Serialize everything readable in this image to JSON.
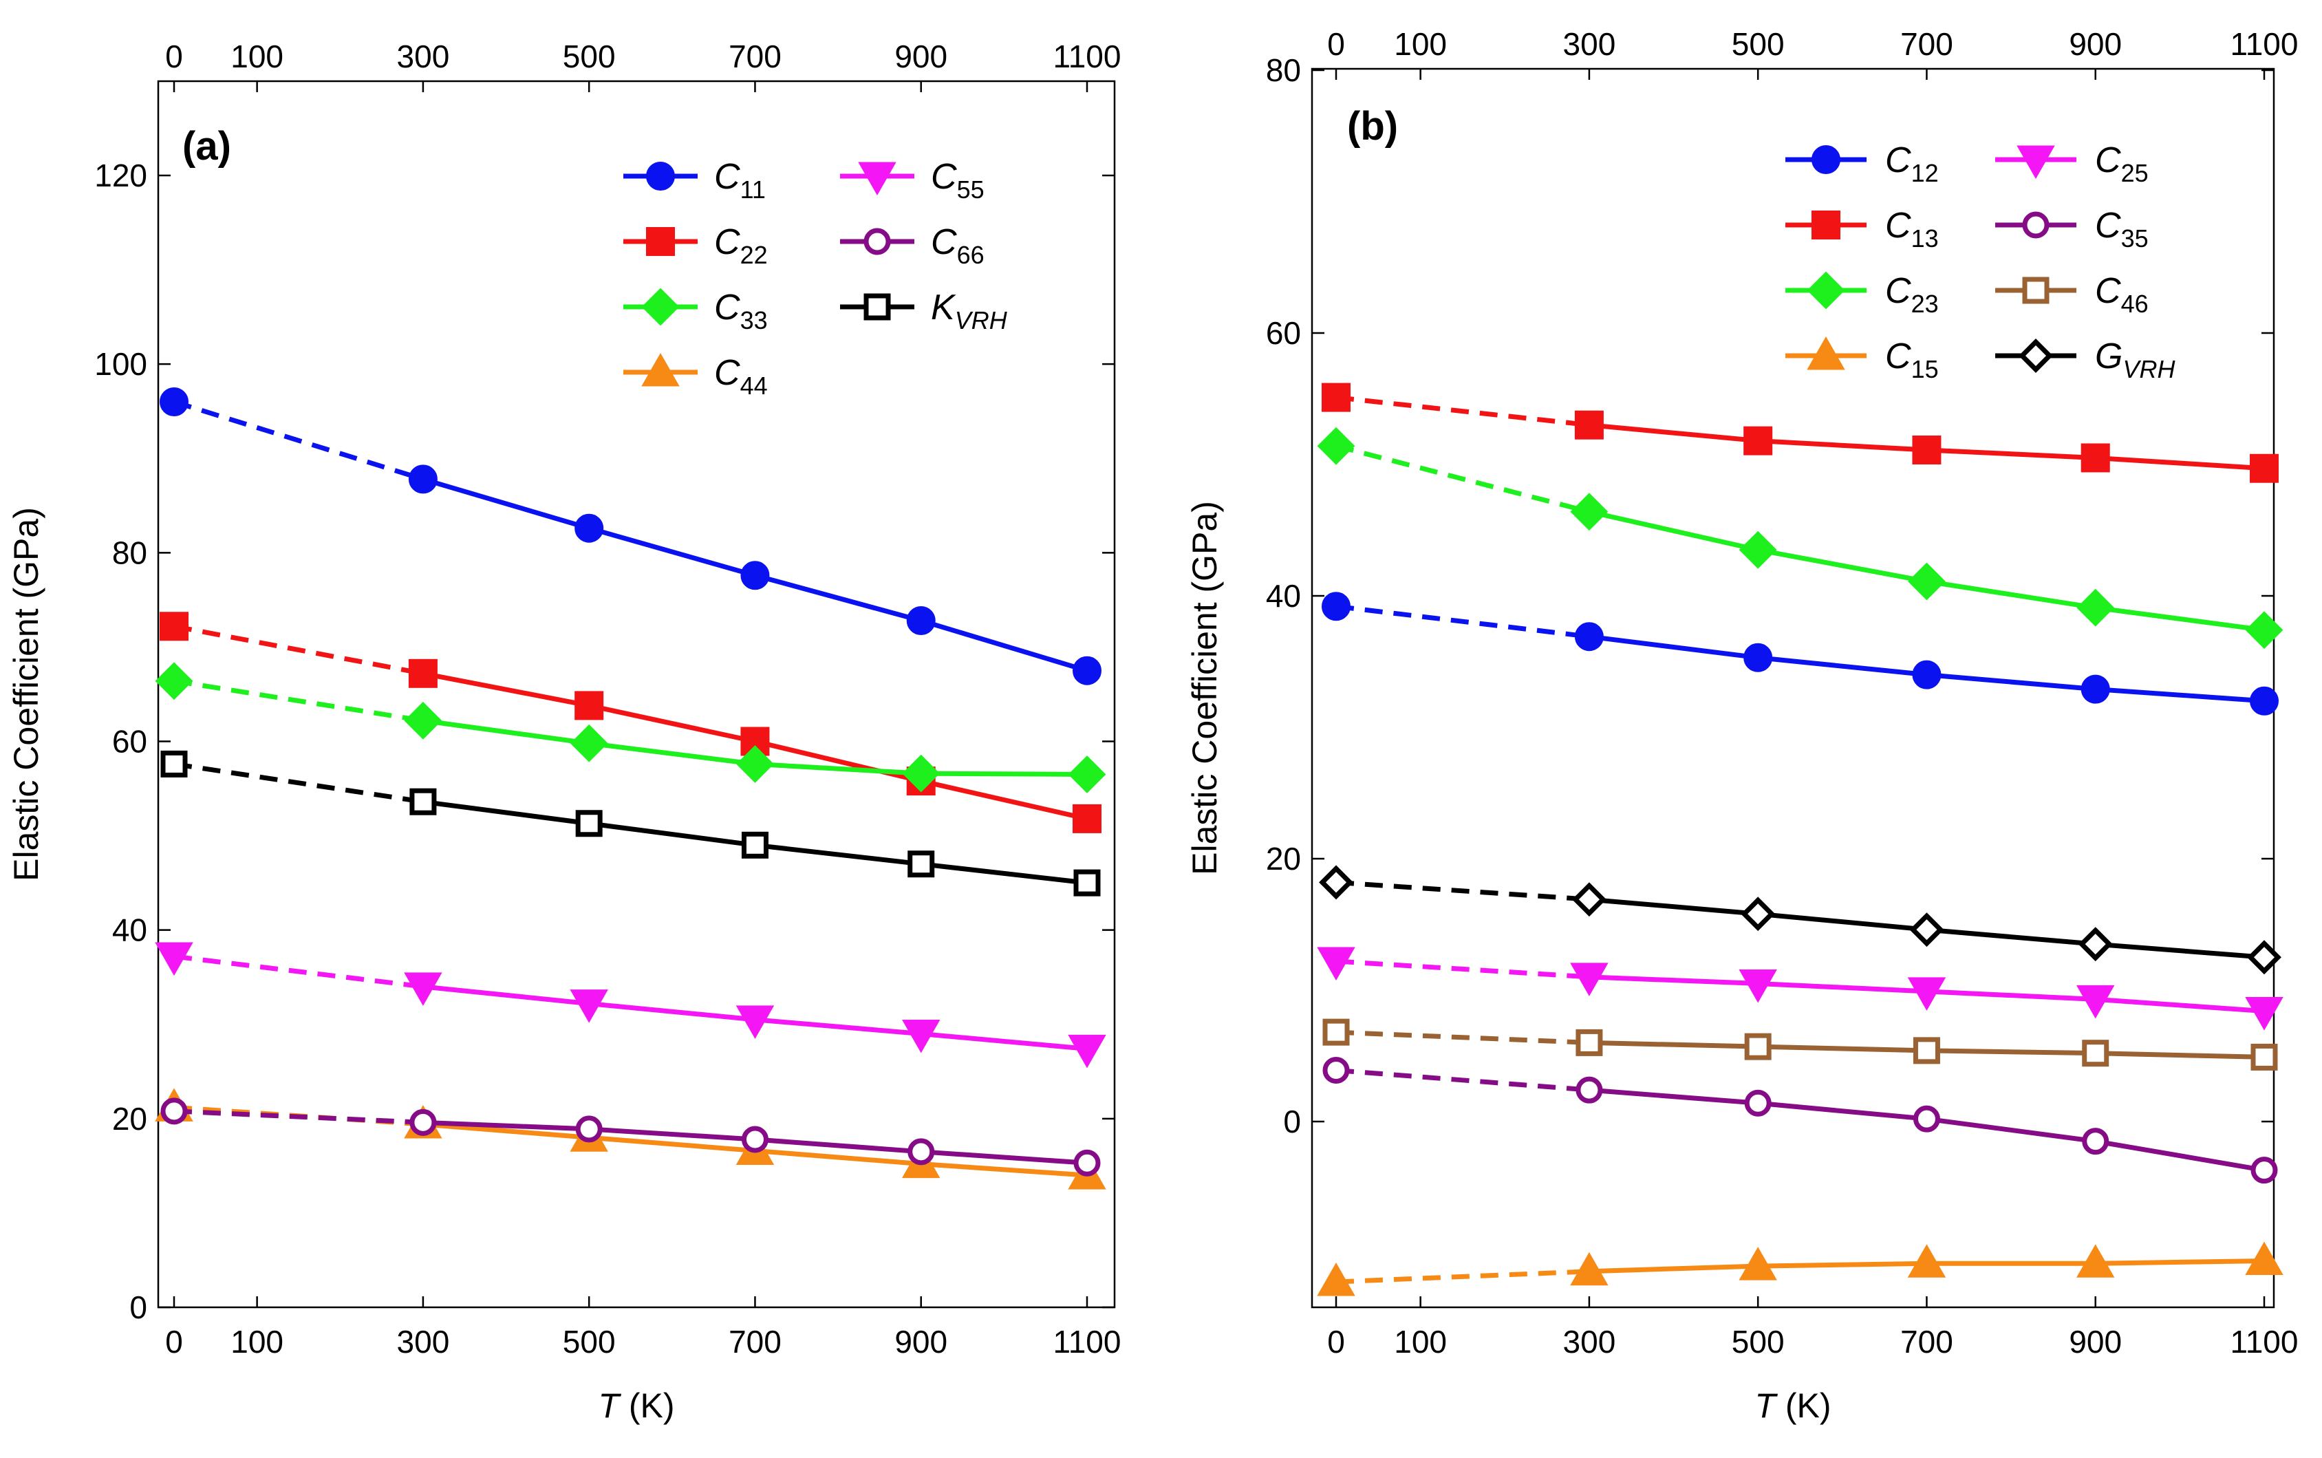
{
  "chart_data": [
    {
      "type": "line",
      "panel_label": "(a)",
      "xlabel": "T (K)",
      "xlabel_italic": "T",
      "xlabel_unit": "(K)",
      "ylabel": "Elastic Coefficient (GPa)",
      "xlim": [
        -20,
        1120
      ],
      "ylim": [
        0,
        130
      ],
      "x_ticks": [
        0,
        100,
        300,
        500,
        700,
        900,
        1100
      ],
      "y_ticks": [
        0,
        20,
        40,
        60,
        80,
        100,
        120
      ],
      "x": [
        0,
        300,
        500,
        700,
        900,
        1100
      ],
      "dashed_segment": "0-300 K",
      "legend_columns": 2,
      "series": [
        {
          "name": "C11",
          "base": "C",
          "sub": "11",
          "sub_italic": false,
          "color": "#0a12f0",
          "marker": "circle",
          "values": [
            96.0,
            87.8,
            82.6,
            77.6,
            72.8,
            67.5
          ]
        },
        {
          "name": "C22",
          "base": "C",
          "sub": "22",
          "sub_italic": false,
          "color": "#f21414",
          "marker": "square",
          "values": [
            72.2,
            67.2,
            63.8,
            60.0,
            55.8,
            51.8
          ]
        },
        {
          "name": "C33",
          "base": "C",
          "sub": "33",
          "sub_italic": false,
          "color": "#1df01d",
          "marker": "diamond",
          "values": [
            66.4,
            62.2,
            59.8,
            57.6,
            56.6,
            56.5
          ]
        },
        {
          "name": "C44",
          "base": "C",
          "sub": "44",
          "sub_italic": false,
          "color": "#f78a14",
          "marker": "triangle-up",
          "values": [
            21.2,
            19.4,
            18.0,
            16.6,
            15.2,
            14.0
          ]
        },
        {
          "name": "C55",
          "base": "C",
          "sub": "55",
          "sub_italic": false,
          "color": "#f416f4",
          "marker": "triangle-down",
          "values": [
            37.2,
            34.0,
            32.2,
            30.5,
            29.0,
            27.4
          ]
        },
        {
          "name": "C66",
          "base": "C",
          "sub": "66",
          "sub_italic": false,
          "color": "#860b86",
          "marker": "circle-open",
          "values": [
            20.8,
            19.6,
            18.9,
            17.8,
            16.5,
            15.3
          ]
        },
        {
          "name": "KVRH",
          "base": "K",
          "sub": "VRH",
          "sub_italic": true,
          "color": "#000000",
          "marker": "square-open",
          "values": [
            57.6,
            53.6,
            51.3,
            49.0,
            47.0,
            45.0
          ]
        }
      ]
    },
    {
      "type": "line",
      "panel_label": "(b)",
      "xlabel": "T (K)",
      "xlabel_italic": "T",
      "xlabel_unit": "(K)",
      "ylabel": "Elastic Coefficient (GPa)",
      "xlim": [
        -20,
        1120
      ],
      "ylim": [
        -15,
        80
      ],
      "x_ticks": [
        0,
        100,
        300,
        500,
        700,
        900,
        1100
      ],
      "y_ticks": [
        0,
        20,
        40,
        60,
        80
      ],
      "x": [
        0,
        300,
        500,
        700,
        900,
        1100
      ],
      "dashed_segment": "0-300 K",
      "legend_columns": 2,
      "series": [
        {
          "name": "C12",
          "base": "C",
          "sub": "12",
          "sub_italic": false,
          "color": "#0a12f0",
          "marker": "circle",
          "values": [
            39.2,
            36.9,
            35.3,
            34.0,
            32.9,
            32.0
          ]
        },
        {
          "name": "C13",
          "base": "C",
          "sub": "13",
          "sub_italic": false,
          "color": "#f21414",
          "marker": "square",
          "values": [
            55.1,
            53.0,
            51.8,
            51.1,
            50.5,
            49.7
          ]
        },
        {
          "name": "C23",
          "base": "C",
          "sub": "23",
          "sub_italic": false,
          "color": "#1df01d",
          "marker": "diamond",
          "values": [
            51.4,
            46.4,
            43.5,
            41.1,
            39.1,
            37.4
          ]
        },
        {
          "name": "C15",
          "base": "C",
          "sub": "15",
          "sub_italic": false,
          "color": "#f78a14",
          "marker": "triangle-up",
          "values": [
            -12.2,
            -11.4,
            -11.0,
            -10.8,
            -10.8,
            -10.6
          ]
        },
        {
          "name": "C25",
          "base": "C",
          "sub": "25",
          "sub_italic": false,
          "color": "#f416f4",
          "marker": "triangle-down",
          "values": [
            12.2,
            11.0,
            10.5,
            9.9,
            9.3,
            8.4
          ]
        },
        {
          "name": "C35",
          "base": "C",
          "sub": "35",
          "sub_italic": false,
          "color": "#860b86",
          "marker": "circle-open",
          "values": [
            3.9,
            2.4,
            1.4,
            0.2,
            -1.5,
            -3.7
          ]
        },
        {
          "name": "C46",
          "base": "C",
          "sub": "46",
          "sub_italic": false,
          "color": "#9a6232",
          "marker": "square-open",
          "values": [
            6.8,
            6.0,
            5.7,
            5.4,
            5.2,
            4.9
          ]
        },
        {
          "name": "GVRH",
          "base": "G",
          "sub": "VRH",
          "sub_italic": true,
          "color": "#000000",
          "marker": "diamond-open",
          "values": [
            18.2,
            16.9,
            15.8,
            14.6,
            13.5,
            12.5
          ]
        }
      ]
    }
  ]
}
